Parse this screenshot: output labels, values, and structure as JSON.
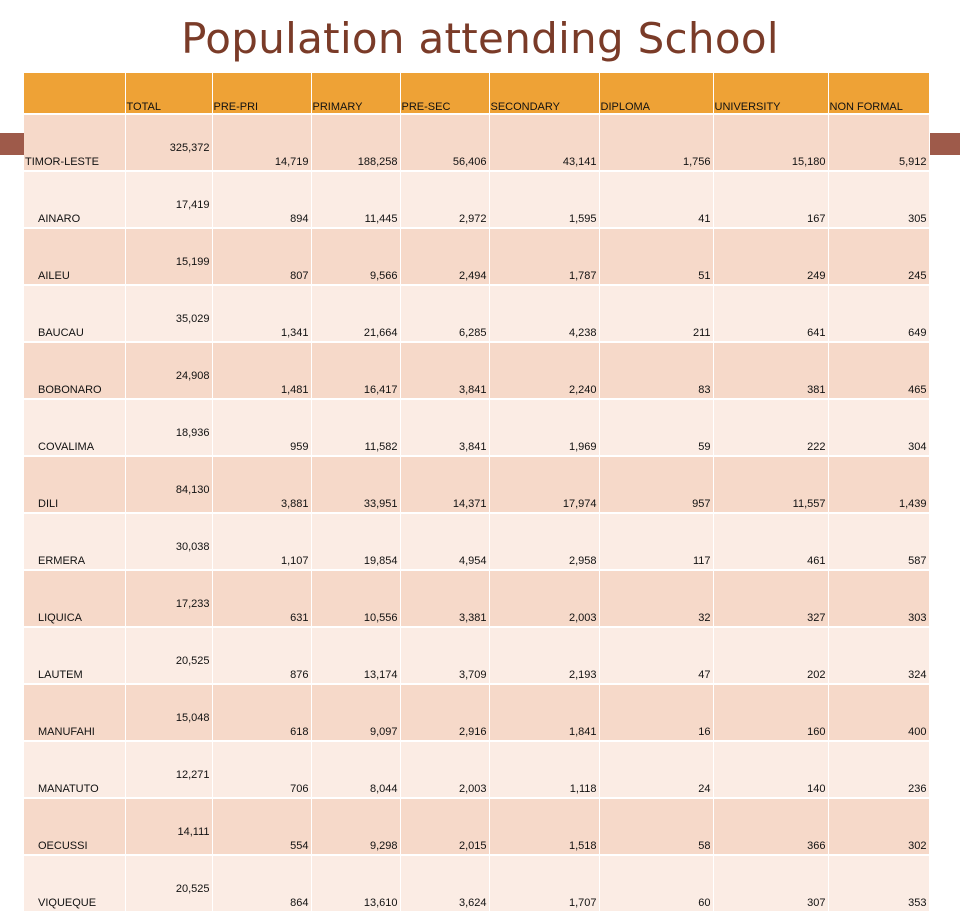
{
  "title": "Population attending School",
  "table": {
    "headers": [
      "",
      "TOTAL",
      "PRE-PRI",
      "PRIMARY",
      "PRE-SEC",
      "SECONDARY",
      "DIPLOMA",
      "UNIVERSITY",
      "NON FORMAL"
    ],
    "rows": [
      [
        "TIMOR-LESTE",
        "325,372",
        "14,719",
        "188,258",
        "56,406",
        "43,141",
        "1,756",
        "15,180",
        "5,912"
      ],
      [
        "AINARO",
        "17,419",
        "894",
        "11,445",
        "2,972",
        "1,595",
        "41",
        "167",
        "305"
      ],
      [
        "AILEU",
        "15,199",
        "807",
        "9,566",
        "2,494",
        "1,787",
        "51",
        "249",
        "245"
      ],
      [
        "BAUCAU",
        "35,029",
        "1,341",
        "21,664",
        "6,285",
        "4,238",
        "211",
        "641",
        "649"
      ],
      [
        "BOBONARO",
        "24,908",
        "1,481",
        "16,417",
        "3,841",
        "2,240",
        "83",
        "381",
        "465"
      ],
      [
        "COVALIMA",
        "18,936",
        "959",
        "11,582",
        "3,841",
        "1,969",
        "59",
        "222",
        "304"
      ],
      [
        "DILI",
        "84,130",
        "3,881",
        "33,951",
        "14,371",
        "17,974",
        "957",
        "11,557",
        "1,439"
      ],
      [
        "ERMERA",
        "30,038",
        "1,107",
        "19,854",
        "4,954",
        "2,958",
        "117",
        "461",
        "587"
      ],
      [
        "LIQUICA",
        "17,233",
        "631",
        "10,556",
        "3,381",
        "2,003",
        "32",
        "327",
        "303"
      ],
      [
        "LAUTEM",
        "20,525",
        "876",
        "13,174",
        "3,709",
        "2,193",
        "47",
        "202",
        "324"
      ],
      [
        "MANUFAHI",
        "15,048",
        "618",
        "9,097",
        "2,916",
        "1,841",
        "16",
        "160",
        "400"
      ],
      [
        "MANATUTO",
        "12,271",
        "706",
        "8,044",
        "2,003",
        "1,118",
        "24",
        "140",
        "236"
      ],
      [
        "OECUSSI",
        "14,111",
        "554",
        "9,298",
        "2,015",
        "1,518",
        "58",
        "366",
        "302"
      ],
      [
        "VIQUEQUE",
        "20,525",
        "864",
        "13,610",
        "3,624",
        "1,707",
        "60",
        "307",
        "353"
      ]
    ]
  },
  "colors": {
    "title": "#7a3b28",
    "header": "#eea236",
    "row_dark": "#f6d9c9",
    "row_light": "#fbece4",
    "accent": "#9e5a4a"
  }
}
